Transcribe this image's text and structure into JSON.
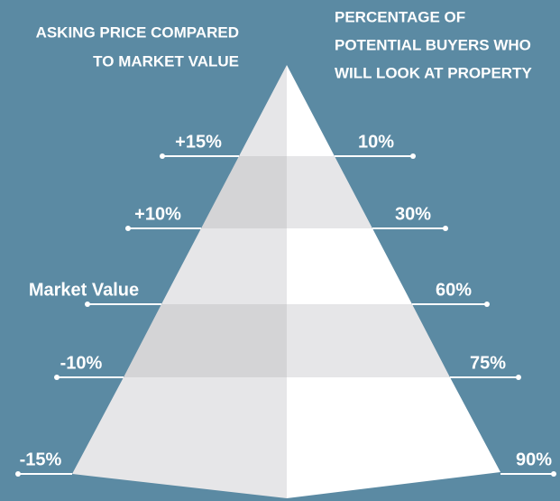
{
  "left_title": [
    "ASKING PRICE COMPARED",
    "TO MARKET VALUE"
  ],
  "right_title": [
    "PERCENTAGE OF",
    "POTENTIAL BUYERS WHO",
    "WILL LOOK AT PROPERTY"
  ],
  "levels": [
    {
      "left": "+15%",
      "right": "10%"
    },
    {
      "left": "+10%",
      "right": "30%"
    },
    {
      "left": "Market Value",
      "right": "60%"
    },
    {
      "left": "-10%",
      "right": "75%"
    },
    {
      "left": "-15%",
      "right": "90%"
    }
  ]
}
